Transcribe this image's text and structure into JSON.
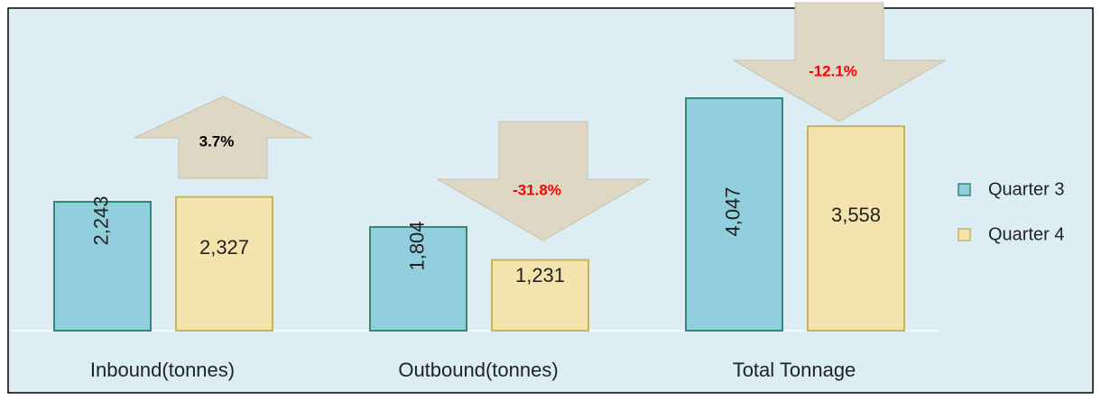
{
  "chart_data": {
    "type": "bar",
    "categories": [
      "Inbound(tonnes)",
      "Outbound(tonnes)",
      "Total Tonnage"
    ],
    "series": [
      {
        "name": "Quarter 3",
        "color": "#92cfde",
        "values": [
          2243,
          1804,
          4047
        ],
        "value_labels": [
          "2,243",
          "1,804",
          "4,047"
        ]
      },
      {
        "name": "Quarter 4",
        "color": "#f3e3ac",
        "values": [
          2327,
          1231,
          3558
        ],
        "value_labels": [
          "2,327",
          "1,231",
          "3,558"
        ]
      }
    ],
    "change_values": [
      3.7,
      -31.8,
      -12.1
    ],
    "change_labels": [
      "3.7%",
      "-31.8%",
      "-12.1%"
    ],
    "change_colors": [
      "#000000",
      "#ff0000",
      "#ff0000"
    ],
    "legend": "right"
  }
}
